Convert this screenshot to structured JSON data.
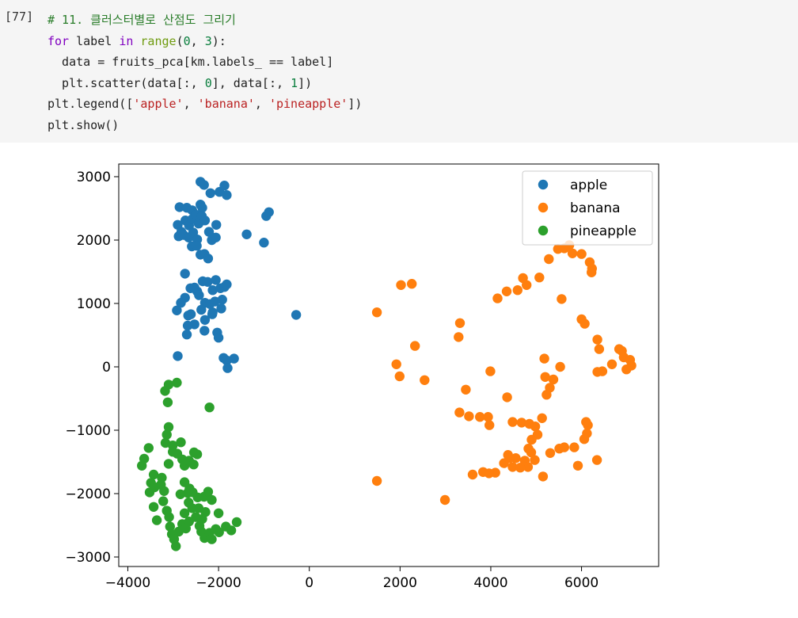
{
  "cell": {
    "prompt": "[77]",
    "lines": [
      [
        [
          "cm",
          "# 11. 클러스터별로 산점도 그리기"
        ]
      ],
      [
        [
          "kw",
          "for"
        ],
        [
          "t",
          " label "
        ],
        [
          "kw",
          "in"
        ],
        [
          "t",
          " "
        ],
        [
          "bi",
          "range"
        ],
        [
          "t",
          "("
        ],
        [
          "num",
          "0"
        ],
        [
          "t",
          ", "
        ],
        [
          "num",
          "3"
        ],
        [
          "t",
          "):"
        ]
      ],
      [
        [
          "t",
          "  data = fruits_pca[km.labels_ == label]"
        ]
      ],
      [
        [
          "t",
          "  plt.scatter(data[:, "
        ],
        [
          "num",
          "0"
        ],
        [
          "t",
          "], data[:, "
        ],
        [
          "num",
          "1"
        ],
        [
          "t",
          "])"
        ]
      ],
      [
        [
          "t",
          "plt.legend(["
        ],
        [
          "str",
          "'apple'"
        ],
        [
          "t",
          ", "
        ],
        [
          "str",
          "'banana'"
        ],
        [
          "t",
          ", "
        ],
        [
          "str",
          "'pineapple'"
        ],
        [
          "t",
          "])"
        ]
      ],
      [
        [
          "t",
          "plt.show()"
        ]
      ]
    ]
  },
  "chart_data": {
    "type": "scatter",
    "title": "",
    "xlabel": "",
    "ylabel": "",
    "xlim": [
      -4200,
      7700
    ],
    "ylim": [
      -3150,
      3200
    ],
    "xticks": [
      -4000,
      -2000,
      0,
      2000,
      4000,
      6000
    ],
    "yticks": [
      -3000,
      -2000,
      -1000,
      0,
      1000,
      2000,
      3000
    ],
    "xtick_labels": [
      "−4000",
      "−2000",
      "0",
      "2000",
      "4000",
      "6000"
    ],
    "ytick_labels": [
      "−3000",
      "−2000",
      "−1000",
      "0",
      "1000",
      "2000",
      "3000"
    ],
    "grid": false,
    "legend_position": "top-right",
    "series": [
      {
        "name": "apple",
        "color": "#1f77b4",
        "points": [
          [
            -2400,
            2920
          ],
          [
            -2320,
            2870
          ],
          [
            -2180,
            2740
          ],
          [
            -1980,
            2760
          ],
          [
            -1870,
            2860
          ],
          [
            -1820,
            2710
          ],
          [
            -950,
            2380
          ],
          [
            -890,
            2440
          ],
          [
            -1380,
            2090
          ],
          [
            -1000,
            1960
          ],
          [
            -2860,
            2520
          ],
          [
            -2700,
            2510
          ],
          [
            -2580,
            2470
          ],
          [
            -2400,
            2560
          ],
          [
            -2360,
            2510
          ],
          [
            -2900,
            2240
          ],
          [
            -2820,
            2130
          ],
          [
            -2730,
            2310
          ],
          [
            -2650,
            2230
          ],
          [
            -2580,
            2330
          ],
          [
            -2500,
            2400
          ],
          [
            -2440,
            2260
          ],
          [
            -2370,
            2380
          ],
          [
            -2300,
            2310
          ],
          [
            -2210,
            2130
          ],
          [
            -2050,
            2240
          ],
          [
            -2150,
            2000
          ],
          [
            -2060,
            2040
          ],
          [
            -2880,
            2060
          ],
          [
            -2770,
            2080
          ],
          [
            -2660,
            2040
          ],
          [
            -2560,
            2120
          ],
          [
            -2470,
            2010
          ],
          [
            -2590,
            1900
          ],
          [
            -2480,
            1910
          ],
          [
            -2400,
            1770
          ],
          [
            -2310,
            1780
          ],
          [
            -2230,
            1710
          ],
          [
            -2740,
            1470
          ],
          [
            -2470,
            1190
          ],
          [
            -2350,
            1350
          ],
          [
            -2240,
            1340
          ],
          [
            -2130,
            1210
          ],
          [
            -2060,
            1370
          ],
          [
            -1960,
            1240
          ],
          [
            -1870,
            1260
          ],
          [
            -1820,
            1300
          ],
          [
            -2620,
            1240
          ],
          [
            -2530,
            1250
          ],
          [
            -2430,
            1130
          ],
          [
            -2300,
            1010
          ],
          [
            -2190,
            990
          ],
          [
            -2080,
            1030
          ],
          [
            -1920,
            1060
          ],
          [
            -1940,
            920
          ],
          [
            -2130,
            860
          ],
          [
            -2380,
            900
          ],
          [
            -2740,
            1090
          ],
          [
            -2830,
            1010
          ],
          [
            -2670,
            810
          ],
          [
            -2610,
            830
          ],
          [
            -2530,
            670
          ],
          [
            -2680,
            650
          ],
          [
            -2300,
            740
          ],
          [
            -2140,
            830
          ],
          [
            -2310,
            570
          ],
          [
            -2030,
            540
          ],
          [
            -2000,
            460
          ],
          [
            -2920,
            890
          ],
          [
            -2700,
            510
          ],
          [
            -2900,
            170
          ],
          [
            -1890,
            140
          ],
          [
            -1820,
            100
          ],
          [
            -1800,
            -20
          ],
          [
            -1660,
            130
          ],
          [
            -290,
            820
          ]
        ]
      },
      {
        "name": "banana",
        "color": "#ff7f0e",
        "points": [
          [
            1490,
            860
          ],
          [
            1920,
            40
          ],
          [
            1990,
            -150
          ],
          [
            2020,
            1290
          ],
          [
            2260,
            1310
          ],
          [
            2330,
            330
          ],
          [
            2540,
            -210
          ],
          [
            3290,
            470
          ],
          [
            3320,
            690
          ],
          [
            3450,
            -360
          ],
          [
            3990,
            -70
          ],
          [
            4150,
            1080
          ],
          [
            4350,
            1190
          ],
          [
            4590,
            1210
          ],
          [
            4710,
            1400
          ],
          [
            4790,
            1290
          ],
          [
            5070,
            1410
          ],
          [
            5280,
            1700
          ],
          [
            5480,
            1860
          ],
          [
            5620,
            1870
          ],
          [
            5730,
            1920
          ],
          [
            5800,
            1790
          ],
          [
            6000,
            1780
          ],
          [
            6180,
            1650
          ],
          [
            6230,
            1550
          ],
          [
            6220,
            1490
          ],
          [
            5180,
            130
          ],
          [
            5200,
            -160
          ],
          [
            5300,
            -330
          ],
          [
            5380,
            -200
          ],
          [
            5530,
            0
          ],
          [
            5230,
            -440
          ],
          [
            5560,
            1070
          ],
          [
            6000,
            750
          ],
          [
            6070,
            680
          ],
          [
            6350,
            430
          ],
          [
            6390,
            280
          ],
          [
            6830,
            280
          ],
          [
            6890,
            250
          ],
          [
            6930,
            150
          ],
          [
            6350,
            -80
          ],
          [
            6460,
            -70
          ],
          [
            6670,
            40
          ],
          [
            7070,
            110
          ],
          [
            7100,
            20
          ],
          [
            6990,
            -40
          ],
          [
            3310,
            -720
          ],
          [
            3520,
            -780
          ],
          [
            3760,
            -790
          ],
          [
            3940,
            -790
          ],
          [
            3970,
            -920
          ],
          [
            4360,
            -480
          ],
          [
            4480,
            -870
          ],
          [
            4680,
            -880
          ],
          [
            4850,
            -900
          ],
          [
            4980,
            -940
          ],
          [
            5130,
            -810
          ],
          [
            5030,
            -1070
          ],
          [
            4900,
            -1150
          ],
          [
            4830,
            -1290
          ],
          [
            4890,
            -1350
          ],
          [
            4380,
            -1390
          ],
          [
            4550,
            -1440
          ],
          [
            4750,
            -1480
          ],
          [
            4820,
            -1580
          ],
          [
            4970,
            -1470
          ],
          [
            5150,
            -1730
          ],
          [
            5310,
            -1360
          ],
          [
            5510,
            -1290
          ],
          [
            5620,
            -1270
          ],
          [
            5840,
            -1270
          ],
          [
            6060,
            -1140
          ],
          [
            6120,
            -1050
          ],
          [
            6140,
            -920
          ],
          [
            6100,
            -870
          ],
          [
            5920,
            -1560
          ],
          [
            6340,
            -1470
          ],
          [
            4290,
            -1520
          ],
          [
            4100,
            -1670
          ],
          [
            3960,
            -1680
          ],
          [
            3830,
            -1660
          ],
          [
            3600,
            -1700
          ],
          [
            1490,
            -1800
          ],
          [
            2990,
            -2100
          ],
          [
            4480,
            -1580
          ],
          [
            4650,
            -1590
          ],
          [
            4410,
            -1440
          ]
        ]
      },
      {
        "name": "pineapple",
        "color": "#2ca02c",
        "points": [
          [
            -3100,
            -280
          ],
          [
            -3180,
            -380
          ],
          [
            -3120,
            -560
          ],
          [
            -2920,
            -250
          ],
          [
            -2200,
            -640
          ],
          [
            -3540,
            -1280
          ],
          [
            -3640,
            -1450
          ],
          [
            -3690,
            -1560
          ],
          [
            -3430,
            -1700
          ],
          [
            -3490,
            -1830
          ],
          [
            -3520,
            -1980
          ],
          [
            -3410,
            -1900
          ],
          [
            -3270,
            -1860
          ],
          [
            -3200,
            -1960
          ],
          [
            -3170,
            -1200
          ],
          [
            -3100,
            -1530
          ],
          [
            -3010,
            -1340
          ],
          [
            -2910,
            -1370
          ],
          [
            -2800,
            -1460
          ],
          [
            -2750,
            -1560
          ],
          [
            -2650,
            -1480
          ],
          [
            -2550,
            -1540
          ],
          [
            -2470,
            -1380
          ],
          [
            -2540,
            -1350
          ],
          [
            -3100,
            -950
          ],
          [
            -3140,
            -1070
          ],
          [
            -3010,
            -1240
          ],
          [
            -2830,
            -1190
          ],
          [
            -3430,
            -2210
          ],
          [
            -3220,
            -2120
          ],
          [
            -3140,
            -2270
          ],
          [
            -3360,
            -2420
          ],
          [
            -3090,
            -2370
          ],
          [
            -3070,
            -2520
          ],
          [
            -3030,
            -2640
          ],
          [
            -2980,
            -2720
          ],
          [
            -2940,
            -2830
          ],
          [
            -2880,
            -2600
          ],
          [
            -2800,
            -2480
          ],
          [
            -2750,
            -2310
          ],
          [
            -2660,
            -2140
          ],
          [
            -2580,
            -2230
          ],
          [
            -2500,
            -2370
          ],
          [
            -2460,
            -2060
          ],
          [
            -2570,
            -1980
          ],
          [
            -2680,
            -1990
          ],
          [
            -2840,
            -2010
          ],
          [
            -2420,
            -2510
          ],
          [
            -2380,
            -2600
          ],
          [
            -2310,
            -2700
          ],
          [
            -2200,
            -2620
          ],
          [
            -2060,
            -2560
          ],
          [
            -1990,
            -2610
          ],
          [
            -2000,
            -2310
          ],
          [
            -1840,
            -2520
          ],
          [
            -1720,
            -2580
          ],
          [
            -1600,
            -2450
          ],
          [
            -2150,
            -2720
          ],
          [
            -2290,
            -2290
          ],
          [
            -2320,
            -2050
          ],
          [
            -2230,
            -1970
          ],
          [
            -2150,
            -2100
          ],
          [
            -2440,
            -2230
          ],
          [
            -2360,
            -2400
          ],
          [
            -2650,
            -2440
          ],
          [
            -2720,
            -2550
          ],
          [
            -2750,
            -1820
          ],
          [
            -2640,
            -1920
          ],
          [
            -3250,
            -1750
          ]
        ]
      }
    ]
  }
}
